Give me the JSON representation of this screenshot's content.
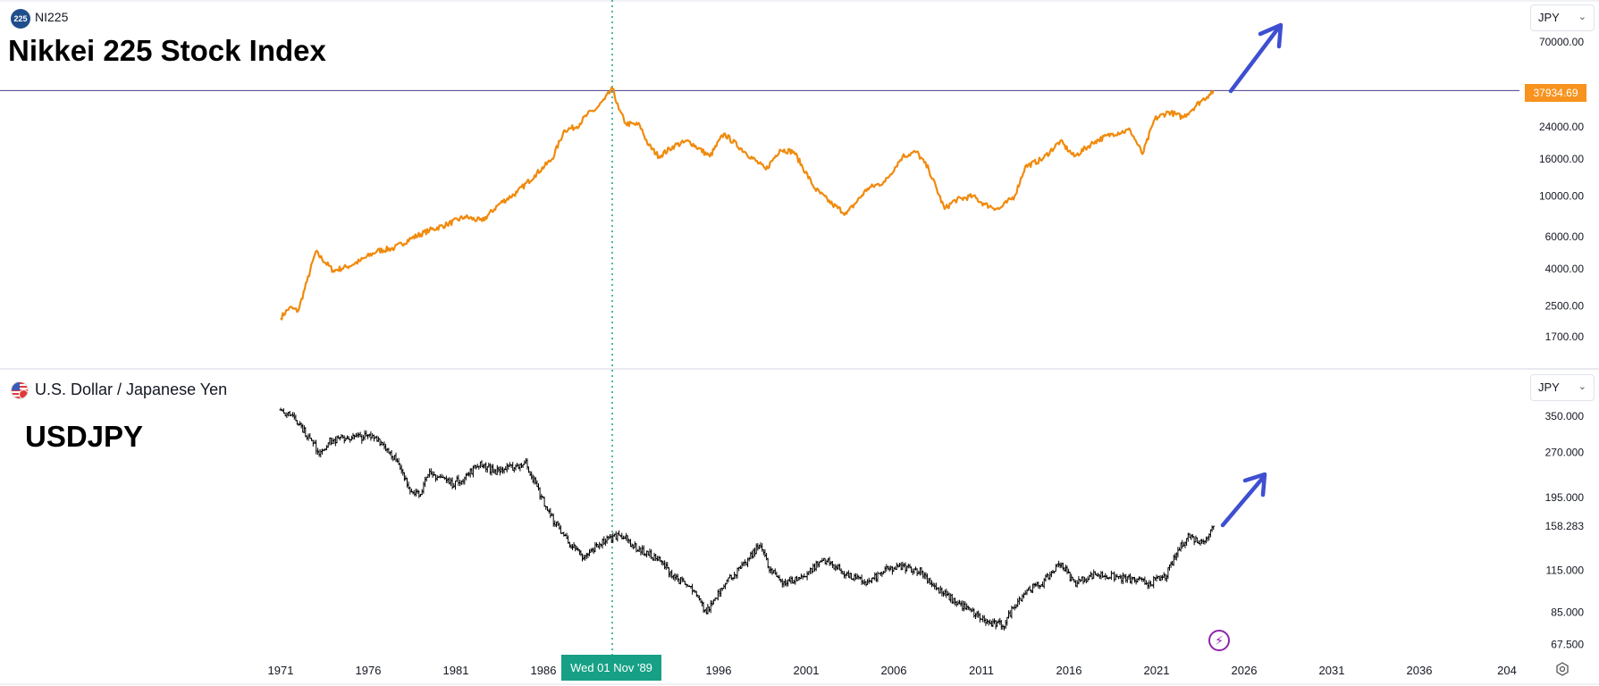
{
  "top_pane": {
    "symbol_badge": "225",
    "symbol": "NI225",
    "title": "Nikkei 225 Stock Index",
    "currency": "JPY",
    "last_price": "37934.69",
    "line_color": "#f08a0c",
    "badge_color": "#f7931e"
  },
  "bottom_pane": {
    "symbol": "U.S. Dollar / Japanese Yen",
    "title": "USDJPY",
    "currency": "JPY",
    "bar_color": "#000000"
  },
  "crosshair_date": "Wed 01 Nov '89",
  "icons": [
    "chevron-down-icon",
    "flag-icon",
    "lightning-icon",
    "settings-icon",
    "arrow-icon"
  ],
  "accent_color": "#3f4fd1",
  "chart_data": [
    {
      "type": "line",
      "title": "Nikkei 225 Stock Index",
      "scale": "log",
      "y_ticks": [
        "70000.00",
        "24000.00",
        "16000.00",
        "10000.00",
        "6000.00",
        "4000.00",
        "2500.00",
        "1700.00"
      ],
      "x_ticks": [
        "1971",
        "1976",
        "1981",
        "1986",
        "1991",
        "1996",
        "2001",
        "2006",
        "2011",
        "2016",
        "2021",
        "2026",
        "2031",
        "2036",
        "204"
      ],
      "series": [
        {
          "x": [
            1971.0,
            1971.5,
            1972.0,
            1972.5,
            1973.0,
            1974.0,
            1974.8,
            1975.5,
            1976.5,
            1977.5,
            1978.5,
            1979.5,
            1980.5,
            1981.5,
            1982.5,
            1983.5,
            1984.5,
            1985.5,
            1986.5,
            1987.2,
            1987.9,
            1988.5,
            1989.0,
            1989.5,
            1989.95,
            1990.3,
            1990.7,
            1991.5,
            1992.0,
            1992.6,
            1993.5,
            1994.3,
            1995.5,
            1996.3,
            1997.5,
            1998.7,
            1999.5,
            2000.3,
            2001.5,
            2002.5,
            2003.3,
            2004.5,
            2005.5,
            2006.5,
            2007.3,
            2008.0,
            2008.9,
            2009.5,
            2010.5,
            2011.2,
            2012.0,
            2012.9,
            2013.5,
            2014.5,
            2015.5,
            2016.3,
            2017.5,
            2018.5,
            2019.5,
            2020.2,
            2020.9,
            2021.7,
            2022.5,
            2023.5,
            2024.0,
            2024.25
          ],
          "y": [
            2150,
            2450,
            2350,
            3400,
            4950,
            3900,
            4100,
            4400,
            5000,
            5200,
            5900,
            6500,
            7000,
            7700,
            7300,
            9100,
            10500,
            13000,
            16000,
            23000,
            24000,
            28000,
            30000,
            34000,
            38900,
            30000,
            25000,
            24500,
            19000,
            16500,
            19000,
            20000,
            16500,
            22000,
            17500,
            14000,
            18000,
            17500,
            11000,
            9000,
            8000,
            11000,
            12000,
            16500,
            17500,
            14000,
            8500,
            9500,
            10000,
            9000,
            8500,
            10000,
            14500,
            16000,
            20000,
            16500,
            20000,
            22000,
            23000,
            17000,
            26500,
            29000,
            27000,
            33000,
            36000,
            37934.69
          ]
        }
      ]
    },
    {
      "type": "bar",
      "subtype": "ohlc",
      "title": "USDJPY",
      "y_ticks": [
        "350.000",
        "270.000",
        "195.000",
        "158.283",
        "115.000",
        "85.000",
        "67.500"
      ],
      "x_ticks": [
        "1971",
        "1976",
        "1981",
        "1986",
        "1991",
        "1996",
        "2001",
        "2006",
        "2011",
        "2016",
        "2021",
        "2026",
        "2031",
        "2036",
        "204"
      ],
      "series": [
        {
          "x": [
            1971.0,
            1971.7,
            1972.5,
            1973.2,
            1973.8,
            1974.8,
            1975.8,
            1976.5,
            1977.5,
            1978.3,
            1978.9,
            1979.5,
            1980.2,
            1980.8,
            1981.5,
            1982.4,
            1983.2,
            1984.0,
            1985.0,
            1985.8,
            1986.4,
            1987.5,
            1988.3,
            1989.2,
            1989.8,
            1990.4,
            1991.3,
            1992.5,
            1993.5,
            1994.5,
            1995.3,
            1996.3,
            1997.5,
            1998.4,
            1998.9,
            1999.8,
            2000.8,
            2002.0,
            2003.5,
            2004.5,
            2005.5,
            2006.5,
            2007.5,
            2008.5,
            2009.5,
            2010.5,
            2011.5,
            2012.3,
            2012.9,
            2013.6,
            2014.5,
            2015.5,
            2016.3,
            2017.5,
            2018.5,
            2019.5,
            2020.5,
            2021.5,
            2022.3,
            2022.8,
            2023.5,
            2024.0,
            2024.25
          ],
          "y": [
            358,
            355,
            305,
            270,
            292,
            300,
            302,
            300,
            260,
            210,
            200,
            230,
            225,
            215,
            225,
            250,
            235,
            240,
            250,
            200,
            170,
            140,
            125,
            140,
            145,
            150,
            135,
            125,
            110,
            100,
            85,
            105,
            120,
            140,
            115,
            105,
            110,
            125,
            110,
            105,
            115,
            118,
            115,
            100,
            92,
            85,
            78,
            78,
            90,
            100,
            105,
            122,
            105,
            112,
            110,
            108,
            105,
            110,
            135,
            148,
            141,
            150,
            158.283
          ]
        }
      ]
    }
  ]
}
